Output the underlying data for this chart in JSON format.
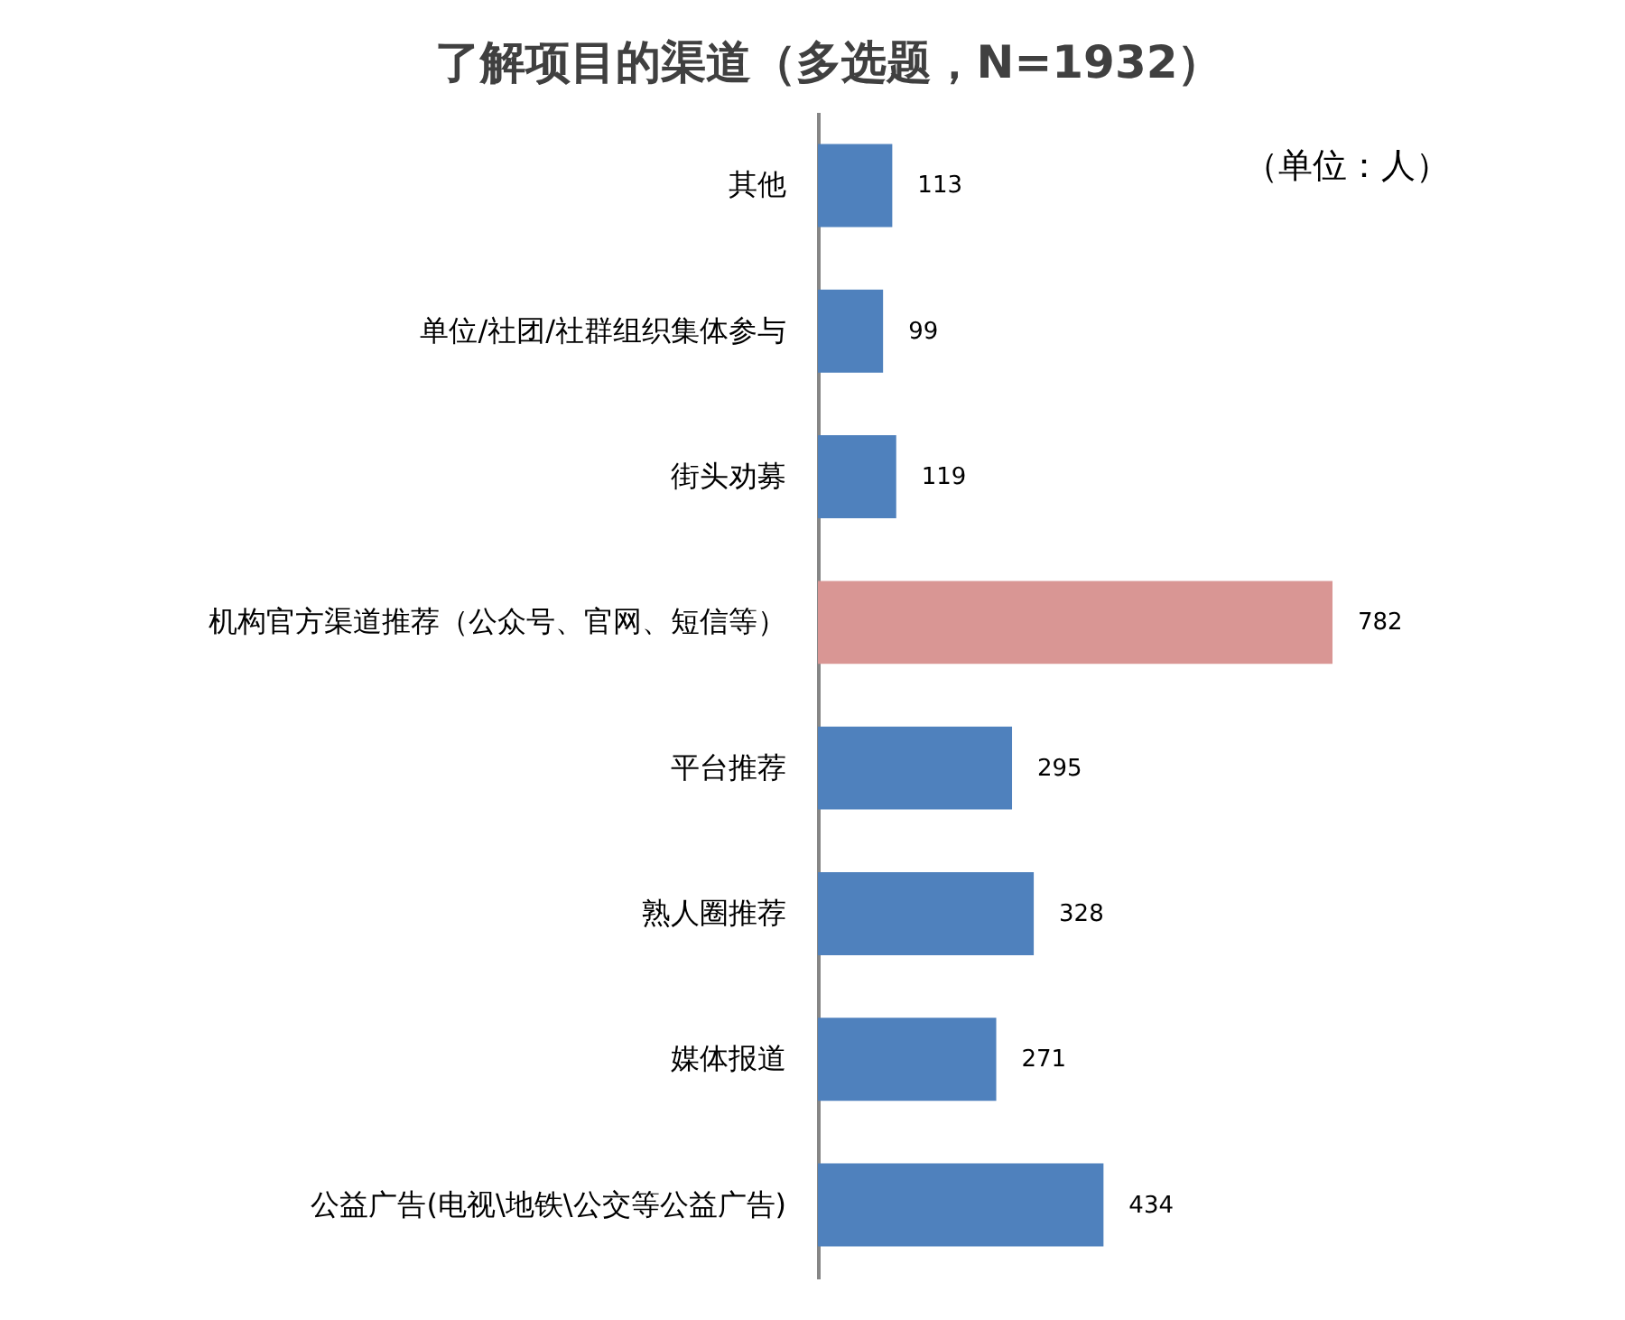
{
  "chart_data": {
    "type": "bar",
    "title": "了解项目的渠道（多选题，N=1932）",
    "annotations": [
      "（单位：人）"
    ],
    "orientation": "horizontal",
    "categories": [
      "其他",
      "单位/社团/社群组织集体参与",
      "街头劝募",
      "机构官方渠道推荐（公众号、官网、短信等）",
      "平台推荐",
      "熟人圈推荐",
      "媒体报道",
      "公益广告(电视\\地铁\\公交等公益广告)"
    ],
    "values": [
      113,
      99,
      119,
      782,
      295,
      328,
      271,
      434
    ],
    "colors": [
      "#4f81bd",
      "#4f81bd",
      "#4f81bd",
      "#d99694",
      "#4f81bd",
      "#4f81bd",
      "#4f81bd",
      "#4f81bd"
    ],
    "data_labels": true,
    "tick_labels": "y"
  }
}
